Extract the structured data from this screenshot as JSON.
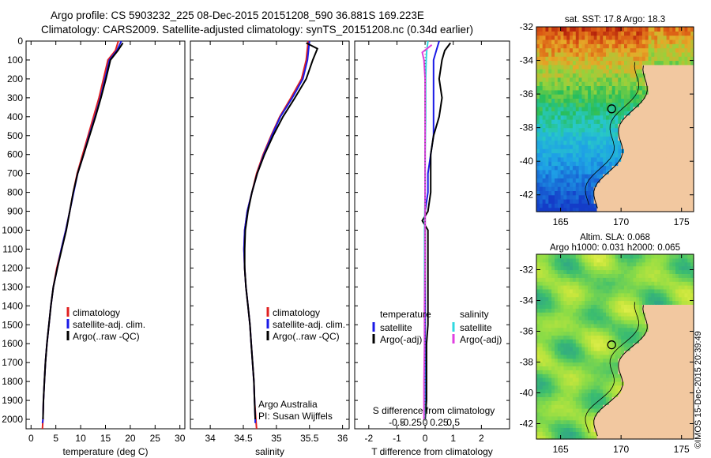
{
  "header": {
    "line1": "Argo profile: CS 5903232_225 08-Dec-2015 20151208_590 36.881S 169.223E",
    "line2": "Climatology: CARS2009. Satellite-adjusted climatology: synTS_20151208.nc (0.34d earlier)"
  },
  "colors": {
    "climatology": "#e02020",
    "satellite": "#1a1ae6",
    "argo": "#000000",
    "sat_salinity": "#30d8e0",
    "argo_salinity": "#e040e0",
    "land": "#f2c8a0"
  },
  "chart_data": [
    {
      "type": "line",
      "name": "temperature-profile",
      "xlabel": "temperature (deg C)",
      "ylim": [
        2050,
        0
      ],
      "xlim": [
        -1,
        31
      ],
      "x_ticks": [
        0,
        5,
        10,
        15,
        20,
        25,
        30
      ],
      "y_ticks": [
        0,
        100,
        200,
        300,
        400,
        500,
        600,
        700,
        800,
        900,
        1000,
        1100,
        1200,
        1300,
        1400,
        1500,
        1600,
        1700,
        1800,
        1900,
        2000
      ],
      "y_tick_labels": [
        "0",
        "100",
        "200",
        "300",
        "400",
        "500",
        "600",
        "700",
        "800",
        "900",
        "1000",
        "1100",
        "1200",
        "1300",
        "1400",
        "1500",
        "1600",
        "1700",
        "1800",
        "1900",
        "2000"
      ],
      "legend": [
        "climatology",
        "satellite-adj. clim.",
        "Argo(..raw -QC)"
      ],
      "series": [
        {
          "name": "climatology",
          "points": [
            [
              17.6,
              0
            ],
            [
              17.0,
              50
            ],
            [
              15.5,
              100
            ],
            [
              14.6,
              200
            ],
            [
              13.7,
              300
            ],
            [
              12.6,
              400
            ],
            [
              11.5,
              500
            ],
            [
              10.4,
              600
            ],
            [
              9.3,
              700
            ],
            [
              8.5,
              800
            ],
            [
              7.8,
              900
            ],
            [
              7.0,
              1000
            ],
            [
              6.1,
              1100
            ],
            [
              5.2,
              1200
            ],
            [
              4.5,
              1300
            ],
            [
              4.0,
              1400
            ],
            [
              3.6,
              1500
            ],
            [
              3.2,
              1600
            ],
            [
              2.9,
              1700
            ],
            [
              2.7,
              1800
            ],
            [
              2.5,
              1900
            ],
            [
              2.4,
              2000
            ],
            [
              2.3,
              2050
            ]
          ]
        },
        {
          "name": "satellite-adj. clim.",
          "points": [
            [
              18.2,
              0
            ],
            [
              17.3,
              50
            ],
            [
              15.8,
              100
            ],
            [
              14.9,
              200
            ],
            [
              14.0,
              300
            ],
            [
              12.9,
              400
            ],
            [
              11.7,
              500
            ],
            [
              10.6,
              600
            ],
            [
              9.4,
              700
            ],
            [
              8.6,
              800
            ],
            [
              7.8,
              900
            ],
            [
              7.0,
              1000
            ],
            [
              6.1,
              1100
            ],
            [
              5.3,
              1200
            ],
            [
              4.5,
              1300
            ],
            [
              4.0,
              1400
            ],
            [
              3.6,
              1500
            ],
            [
              3.2,
              1600
            ],
            [
              2.9,
              1700
            ],
            [
              2.7,
              1800
            ],
            [
              2.5,
              1900
            ],
            [
              2.4,
              2000
            ],
            [
              2.3,
              2020
            ]
          ]
        },
        {
          "name": "Argo(..raw -QC)",
          "points": [
            [
              18.5,
              10
            ],
            [
              17.5,
              50
            ],
            [
              16.0,
              100
            ],
            [
              15.1,
              200
            ],
            [
              14.1,
              300
            ],
            [
              13.0,
              400
            ],
            [
              11.8,
              500
            ],
            [
              10.6,
              600
            ],
            [
              9.4,
              700
            ],
            [
              8.5,
              800
            ],
            [
              7.8,
              900
            ],
            [
              7.1,
              1000
            ],
            [
              6.2,
              1100
            ],
            [
              5.3,
              1200
            ],
            [
              4.5,
              1300
            ],
            [
              4.0,
              1400
            ],
            [
              3.6,
              1500
            ],
            [
              3.2,
              1600
            ],
            [
              2.9,
              1700
            ],
            [
              2.7,
              1800
            ],
            [
              2.5,
              1900
            ],
            [
              2.4,
              2000
            ]
          ]
        }
      ]
    },
    {
      "type": "line",
      "name": "salinity-profile",
      "xlabel": "salinity",
      "ylim": [
        2050,
        0
      ],
      "xlim": [
        33.7,
        36.1
      ],
      "x_ticks": [
        34,
        34.5,
        35,
        35.5,
        36
      ],
      "x_tick_labels": [
        "34",
        "34.5",
        "35",
        "35.5",
        "36"
      ],
      "legend": [
        "climatology",
        "satellite-adj. clim.",
        "Argo(..raw -QC)"
      ],
      "annotation": [
        "Argo Australia",
        "PI: Susan Wijffels"
      ],
      "series": [
        {
          "name": "climatology",
          "points": [
            [
              35.48,
              0
            ],
            [
              35.45,
              100
            ],
            [
              35.38,
              200
            ],
            [
              35.22,
              300
            ],
            [
              35.05,
              400
            ],
            [
              34.92,
              500
            ],
            [
              34.8,
              600
            ],
            [
              34.7,
              700
            ],
            [
              34.63,
              800
            ],
            [
              34.56,
              900
            ],
            [
              34.52,
              1000
            ],
            [
              34.51,
              1100
            ],
            [
              34.52,
              1200
            ],
            [
              34.54,
              1300
            ],
            [
              34.57,
              1400
            ],
            [
              34.6,
              1500
            ],
            [
              34.62,
              1600
            ],
            [
              34.64,
              1700
            ],
            [
              34.66,
              1800
            ],
            [
              34.67,
              1900
            ],
            [
              34.69,
              2000
            ],
            [
              34.7,
              2050
            ]
          ]
        },
        {
          "name": "satellite-adj. clim.",
          "points": [
            [
              35.5,
              0
            ],
            [
              35.47,
              100
            ],
            [
              35.4,
              200
            ],
            [
              35.24,
              300
            ],
            [
              35.06,
              400
            ],
            [
              34.93,
              500
            ],
            [
              34.81,
              600
            ],
            [
              34.71,
              700
            ],
            [
              34.63,
              800
            ],
            [
              34.56,
              900
            ],
            [
              34.52,
              1000
            ],
            [
              34.51,
              1100
            ],
            [
              34.52,
              1200
            ],
            [
              34.54,
              1300
            ],
            [
              34.57,
              1400
            ],
            [
              34.6,
              1500
            ],
            [
              34.62,
              1600
            ],
            [
              34.64,
              1700
            ],
            [
              34.66,
              1800
            ],
            [
              34.67,
              1900
            ],
            [
              34.68,
              2000
            ],
            [
              34.68,
              2020
            ]
          ]
        },
        {
          "name": "Argo(..raw -QC)",
          "points": [
            [
              35.45,
              10
            ],
            [
              35.62,
              40
            ],
            [
              35.55,
              100
            ],
            [
              35.45,
              200
            ],
            [
              35.28,
              300
            ],
            [
              35.1,
              400
            ],
            [
              34.95,
              500
            ],
            [
              34.82,
              600
            ],
            [
              34.71,
              700
            ],
            [
              34.63,
              800
            ],
            [
              34.57,
              900
            ],
            [
              34.53,
              1000
            ],
            [
              34.52,
              1100
            ],
            [
              34.52,
              1200
            ],
            [
              34.54,
              1300
            ],
            [
              34.57,
              1400
            ],
            [
              34.6,
              1500
            ],
            [
              34.62,
              1600
            ],
            [
              34.64,
              1700
            ],
            [
              34.66,
              1800
            ],
            [
              34.67,
              1900
            ],
            [
              34.68,
              2000
            ]
          ]
        }
      ]
    },
    {
      "type": "line",
      "name": "difference-profile",
      "xlabel": "T difference from climatology",
      "top_axis_label": "S difference from climatology",
      "ylim": [
        2050,
        0
      ],
      "xlim": [
        -2.5,
        3
      ],
      "x_ticks": [
        -2,
        -1,
        0,
        1,
        2
      ],
      "x_tick_labels": [
        "-2",
        "-1",
        "0",
        "1",
        "2"
      ],
      "s_ticks": [
        -0.5,
        -0.25,
        0,
        0.25,
        0.5
      ],
      "s_tick_labels": [
        "-0.5",
        "-0.25",
        "0",
        "0.25",
        "0.5"
      ],
      "legend_left": {
        "title": "temperature",
        "items": [
          "satellite",
          "Argo(-adj)"
        ]
      },
      "legend_right": {
        "title": "salinity",
        "items": [
          "satellite",
          "Argo(-adj)"
        ]
      },
      "series": [
        {
          "name": "temperature satellite",
          "points": [
            [
              0.5,
              0
            ],
            [
              0.4,
              50
            ],
            [
              0.3,
              100
            ],
            [
              0.3,
              200
            ],
            [
              0.3,
              300
            ],
            [
              0.3,
              400
            ],
            [
              0.3,
              500
            ],
            [
              0.2,
              600
            ],
            [
              0.1,
              700
            ],
            [
              0.1,
              800
            ],
            [
              0.0,
              900
            ],
            [
              0.0,
              1000
            ],
            [
              0.0,
              1100
            ],
            [
              0.0,
              1200
            ],
            [
              0.0,
              1300
            ],
            [
              0.0,
              1400
            ],
            [
              0.0,
              1500
            ],
            [
              0.0,
              1600
            ],
            [
              0.0,
              1700
            ],
            [
              0.0,
              1800
            ],
            [
              0.0,
              1900
            ],
            [
              0.0,
              2000
            ]
          ]
        },
        {
          "name": "temperature Argo(-adj)",
          "points": [
            [
              0.9,
              10
            ],
            [
              0.7,
              50
            ],
            [
              0.6,
              100
            ],
            [
              0.5,
              200
            ],
            [
              0.6,
              300
            ],
            [
              0.5,
              400
            ],
            [
              0.3,
              500
            ],
            [
              0.2,
              600
            ],
            [
              0.2,
              700
            ],
            [
              0.2,
              800
            ],
            [
              0.1,
              900
            ],
            [
              -0.1,
              950
            ],
            [
              0.1,
              1000
            ],
            [
              0.1,
              1100
            ],
            [
              0.1,
              1200
            ],
            [
              0.1,
              1300
            ],
            [
              0.1,
              1400
            ],
            [
              0.1,
              1500
            ],
            [
              0.05,
              1600
            ],
            [
              0.05,
              1700
            ],
            [
              0.05,
              1800
            ],
            [
              0.05,
              1900
            ],
            [
              0.0,
              2000
            ]
          ]
        },
        {
          "name": "salinity satellite",
          "points": [
            [
              0.05,
              0
            ],
            [
              0.03,
              50
            ],
            [
              0.02,
              100
            ],
            [
              0.01,
              200
            ],
            [
              0.01,
              400
            ],
            [
              0.0,
              600
            ],
            [
              0.0,
              800
            ],
            [
              -0.01,
              1000
            ],
            [
              -0.01,
              1200
            ],
            [
              -0.01,
              1400
            ],
            [
              -0.01,
              1600
            ],
            [
              -0.01,
              1800
            ],
            [
              -0.01,
              2000
            ]
          ]
        },
        {
          "name": "salinity Argo(-adj)",
          "points": [
            [
              0.12,
              20
            ],
            [
              -0.05,
              60
            ],
            [
              -0.02,
              100
            ],
            [
              0.0,
              200
            ],
            [
              0.0,
              400
            ],
            [
              0.0,
              600
            ],
            [
              0.0,
              800
            ],
            [
              0.0,
              1000
            ],
            [
              0.0,
              1200
            ],
            [
              -0.01,
              1400
            ],
            [
              -0.01,
              1600
            ],
            [
              -0.02,
              1800
            ],
            [
              -0.02,
              2000
            ]
          ]
        }
      ]
    },
    {
      "type": "heatmap",
      "name": "sst-map",
      "title": "sat. SST: 17.8  Argo: 18.3",
      "xlim": [
        163,
        176
      ],
      "ylim": [
        -43,
        -32
      ],
      "x_ticks": [
        165,
        170,
        175
      ],
      "y_ticks": [
        -32,
        -34,
        -36,
        -38,
        -40,
        -42
      ],
      "y_tick_labels": [
        "-32",
        "-34",
        "-36",
        "-38",
        "-40",
        "-42"
      ],
      "marker": {
        "lon": 169.223,
        "lat": -36.881
      }
    },
    {
      "type": "heatmap",
      "name": "sla-map",
      "title": "Altim. SLA: 0.068",
      "subtitle": "Argo h1000: 0.031  h2000: 0.065",
      "xlim": [
        163,
        176
      ],
      "ylim": [
        -43,
        -31
      ],
      "x_ticks": [
        165,
        170,
        175
      ],
      "y_ticks": [
        -32,
        -34,
        -36,
        -38,
        -40,
        -42
      ],
      "y_tick_labels": [
        "-32",
        "-34",
        "-36",
        "-38",
        "-40",
        "-42"
      ],
      "marker": {
        "lon": 169.223,
        "lat": -36.881
      }
    }
  ],
  "stamp": "©IMOS 15-Dec-2015 20:39:49"
}
